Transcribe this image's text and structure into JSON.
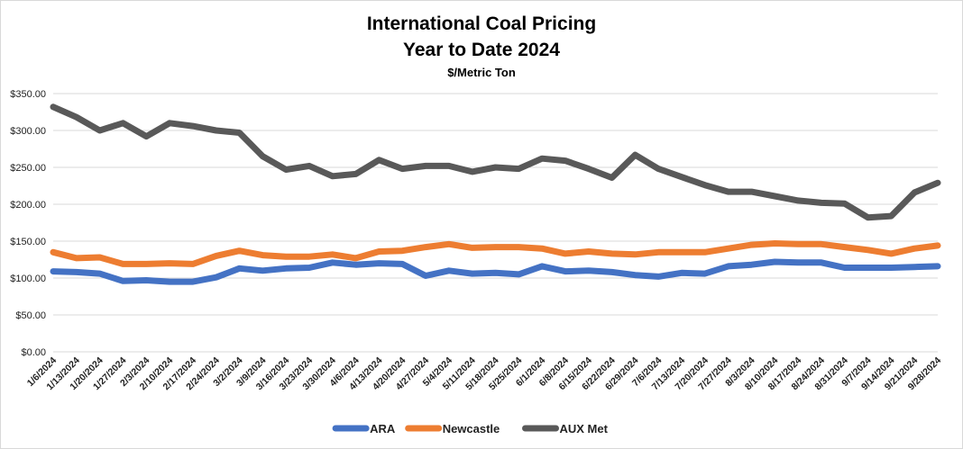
{
  "chart_data": {
    "type": "line",
    "title": [
      "International Coal Pricing",
      "Year to Date 2024"
    ],
    "subtitle": "$/Metric Ton",
    "ylim": [
      0,
      350
    ],
    "y_ticks": [
      "$0.00",
      "$50.00",
      "$100.00",
      "$150.00",
      "$200.00",
      "$250.00",
      "$300.00",
      "$350.00"
    ],
    "grid": true,
    "legend_position": "bottom",
    "categories": [
      "1/6/2024",
      "1/13/2024",
      "1/20/2024",
      "1/27/2024",
      "2/3/2024",
      "2/10/2024",
      "2/17/2024",
      "2/24/2024",
      "3/2/2024",
      "3/9/2024",
      "3/16/2024",
      "3/23/2024",
      "3/30/2024",
      "4/6/2024",
      "4/13/2024",
      "4/20/2024",
      "4/27/2024",
      "5/4/2024",
      "5/11/2024",
      "5/18/2024",
      "5/25/2024",
      "6/1/2024",
      "6/8/2024",
      "6/15/2024",
      "6/22/2024",
      "6/29/2024",
      "7/6/2024",
      "7/13/2024",
      "7/20/2024",
      "7/27/2024",
      "8/3/2024",
      "8/10/2024",
      "8/17/2024",
      "8/24/2024",
      "8/31/2024",
      "9/7/2024",
      "9/14/2024",
      "9/21/2024",
      "9/28/2024"
    ],
    "series": [
      {
        "name": "ARA",
        "color": "#4472C4",
        "values": [
          109,
          108,
          106,
          96,
          97,
          95,
          95,
          101,
          113,
          110,
          113,
          114,
          121,
          118,
          120,
          119,
          103,
          110,
          106,
          107,
          105,
          116,
          109,
          110,
          108,
          104,
          102,
          107,
          106,
          116,
          118,
          122,
          121,
          121,
          114,
          114,
          114,
          115,
          116
        ]
      },
      {
        "name": "Newcastle",
        "color": "#ED7D31",
        "values": [
          135,
          127,
          128,
          119,
          119,
          120,
          119,
          130,
          137,
          131,
          129,
          129,
          132,
          127,
          136,
          137,
          142,
          146,
          141,
          142,
          142,
          140,
          133,
          136,
          133,
          132,
          135,
          135,
          135,
          140,
          145,
          147,
          146,
          146,
          142,
          138,
          133,
          140,
          144
        ]
      },
      {
        "name": "AUX Met",
        "color": "#595959",
        "values": [
          332,
          318,
          300,
          310,
          292,
          310,
          306,
          300,
          297,
          265,
          247,
          252,
          238,
          241,
          260,
          248,
          252,
          252,
          244,
          250,
          248,
          262,
          259,
          248,
          236,
          267,
          248,
          237,
          226,
          217,
          217,
          211,
          205,
          202,
          201,
          182,
          184,
          216,
          229
        ]
      }
    ]
  }
}
